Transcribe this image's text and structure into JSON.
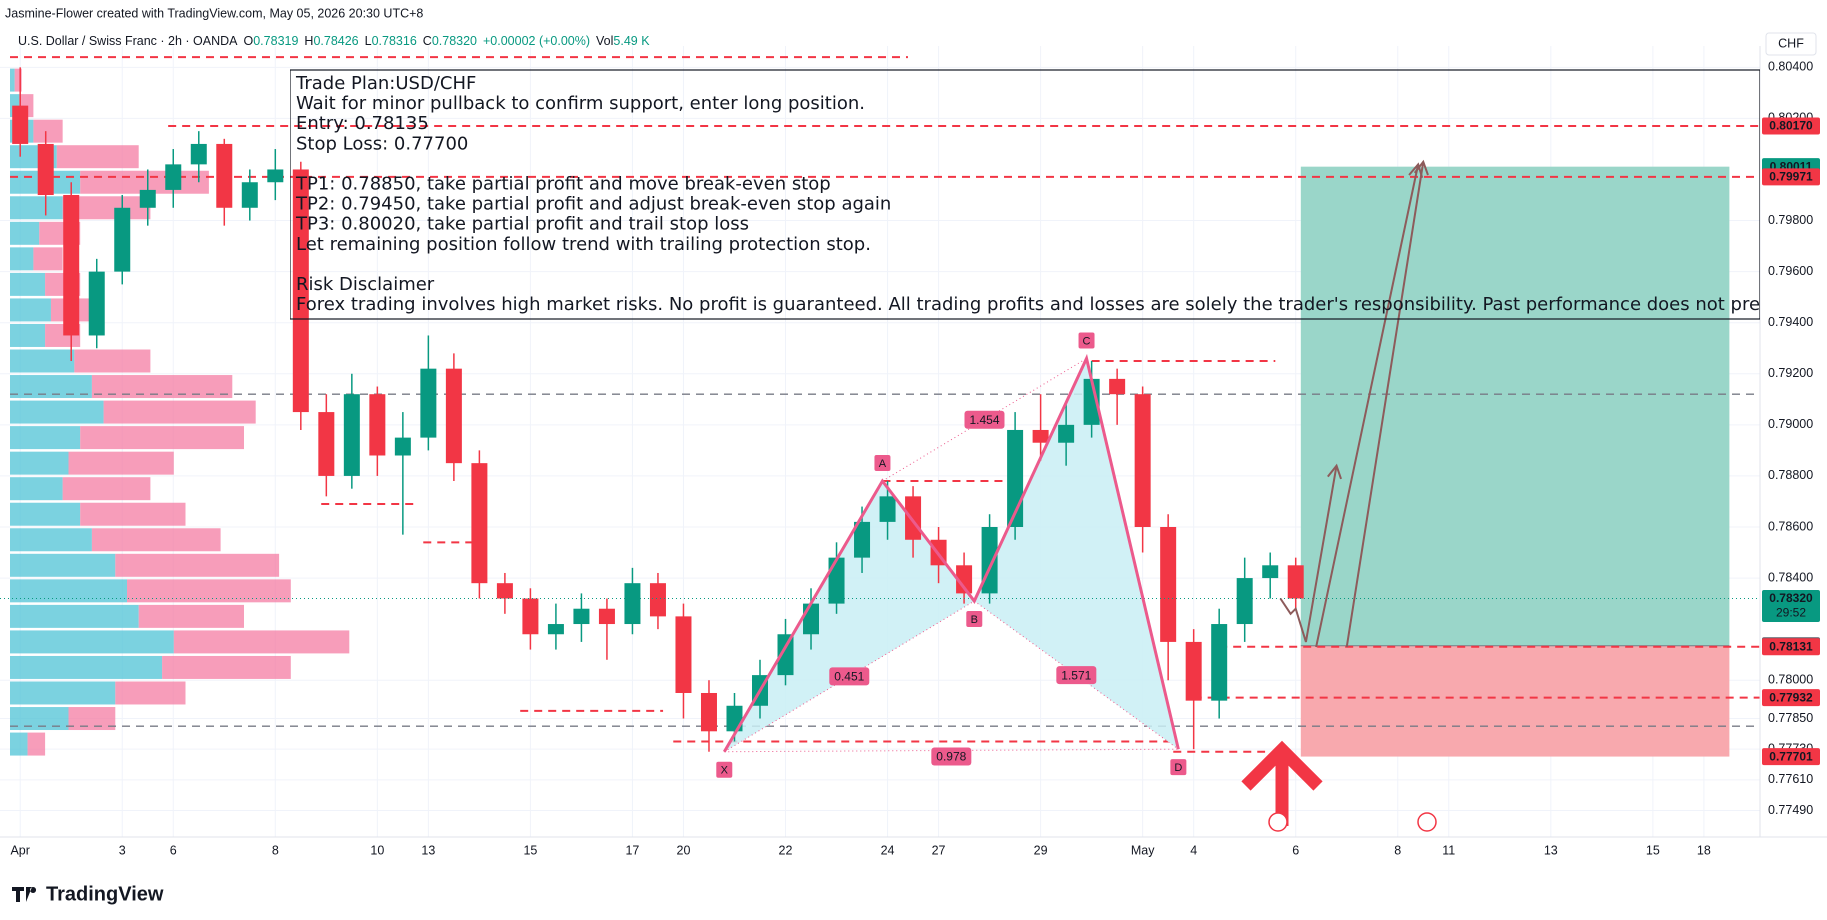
{
  "header": {
    "credit": "Jasmine-Flower created with TradingView.com, May 05, 2026 20:30 UTC+8",
    "symbol": "U.S. Dollar / Swiss Franc · 2h · OANDA",
    "ohlc": [
      {
        "key": "O",
        "value": "0.78319"
      },
      {
        "key": "H",
        "value": "0.78426"
      },
      {
        "key": "L",
        "value": "0.78316"
      },
      {
        "key": "C",
        "value": "0.78320"
      }
    ],
    "change": "+0.00002 (+0.00%)",
    "volume_key": "Vol",
    "volume": "5.49 K",
    "currency": "CHF"
  },
  "plan": {
    "paragraphs": [
      [
        "Trade Plan:USD/CHF",
        "Wait for minor pullback to confirm support, enter long position.",
        "Entry: 0.78135",
        "Stop Loss: 0.77700"
      ],
      [
        "TP1: 0.78850, take partial profit and move break-even stop",
        "TP2: 0.79450, take partial profit and adjust break-even stop again",
        "TP3: 0.80020, take partial profit and trail stop loss",
        "Let remaining position follow trend with trailing protection stop."
      ],
      [
        "Risk Disclaimer",
        "Forex trading involves high market risks. No profit is guaranteed. All trading profits and losses are solely the trader's responsibility. Past performance does not pre"
      ]
    ]
  },
  "footer": {
    "brand": "TradingView"
  },
  "chart_data": {
    "type": "candlestick",
    "x": [
      0,
      0.5,
      1,
      1.5,
      2,
      2.5,
      3,
      3.5,
      4,
      4.5,
      5,
      5.5,
      6,
      6.5,
      7,
      7.5,
      8,
      8.5,
      9,
      9.5,
      10,
      10.5,
      11,
      11.5,
      12,
      12.5,
      13,
      13.5,
      14,
      14.5,
      15,
      15.5,
      16,
      16.5,
      17,
      17.5,
      18,
      18.5,
      19,
      19.5,
      20,
      20.5,
      21,
      21.5,
      22,
      22.5,
      23,
      23.5,
      24,
      24.5,
      25
    ],
    "open": [
      0.8025,
      0.801,
      0.799,
      0.7935,
      0.796,
      0.7985,
      0.7992,
      0.8002,
      0.801,
      0.7985,
      0.7995,
      0.8,
      0.7905,
      0.788,
      0.7912,
      0.7888,
      0.7895,
      0.7922,
      0.7885,
      0.7838,
      0.7832,
      0.7818,
      0.7822,
      0.7828,
      0.7822,
      0.7838,
      0.7825,
      0.7795,
      0.778,
      0.779,
      0.7802,
      0.7818,
      0.783,
      0.7848,
      0.7862,
      0.7872,
      0.7855,
      0.7845,
      0.7834,
      0.786,
      0.7898,
      0.7893,
      0.79,
      0.7918,
      0.7912,
      0.786,
      0.7815,
      0.7792,
      0.7822,
      0.784,
      0.7845
    ],
    "high": [
      0.804,
      0.8015,
      0.7995,
      0.7965,
      0.799,
      0.8,
      0.8008,
      0.8015,
      0.8012,
      0.8,
      0.8008,
      0.8003,
      0.7912,
      0.792,
      0.7915,
      0.7905,
      0.7935,
      0.7928,
      0.789,
      0.7842,
      0.7836,
      0.783,
      0.7834,
      0.7832,
      0.7844,
      0.7842,
      0.783,
      0.78,
      0.7795,
      0.7808,
      0.7824,
      0.7836,
      0.7854,
      0.7868,
      0.7878,
      0.7876,
      0.786,
      0.785,
      0.7865,
      0.7905,
      0.7912,
      0.7908,
      0.7925,
      0.7922,
      0.7915,
      0.7865,
      0.782,
      0.7828,
      0.7848,
      0.785,
      0.7848
    ],
    "low": [
      0.8005,
      0.7982,
      0.7925,
      0.793,
      0.7955,
      0.7978,
      0.7985,
      0.7995,
      0.7978,
      0.798,
      0.7988,
      0.7898,
      0.7872,
      0.7875,
      0.788,
      0.7857,
      0.789,
      0.7878,
      0.7832,
      0.7826,
      0.7812,
      0.7812,
      0.7815,
      0.7808,
      0.7818,
      0.782,
      0.7785,
      0.7772,
      0.7776,
      0.7785,
      0.7798,
      0.7812,
      0.7826,
      0.7842,
      0.7855,
      0.7848,
      0.7838,
      0.783,
      0.783,
      0.7855,
      0.7886,
      0.7884,
      0.7895,
      0.79,
      0.785,
      0.78,
      0.7773,
      0.7785,
      0.7815,
      0.7832,
      0.7828
    ],
    "close": [
      0.801,
      0.799,
      0.7935,
      0.796,
      0.7985,
      0.7992,
      0.8002,
      0.801,
      0.7985,
      0.7995,
      0.8,
      0.7905,
      0.788,
      0.7912,
      0.7888,
      0.7895,
      0.7922,
      0.7885,
      0.7838,
      0.7832,
      0.7818,
      0.7822,
      0.7828,
      0.7822,
      0.7838,
      0.7825,
      0.7795,
      0.778,
      0.779,
      0.7802,
      0.7818,
      0.783,
      0.7848,
      0.7862,
      0.7872,
      0.7855,
      0.7845,
      0.7834,
      0.786,
      0.7898,
      0.7893,
      0.79,
      0.7918,
      0.7912,
      0.786,
      0.7815,
      0.7792,
      0.7822,
      0.784,
      0.7845,
      0.7832
    ],
    "up_color": "#089981",
    "down_color": "#f23645",
    "xlim": [
      -0.2,
      34.1
    ],
    "ylim": [
      0.7739,
      0.8046
    ],
    "xticks": [
      {
        "value": 0,
        "label": "Apr"
      },
      {
        "value": 2,
        "label": "3"
      },
      {
        "value": 3,
        "label": "6"
      },
      {
        "value": 5,
        "label": "8"
      },
      {
        "value": 7,
        "label": "10"
      },
      {
        "value": 8,
        "label": "13"
      },
      {
        "value": 10,
        "label": "15"
      },
      {
        "value": 12,
        "label": "17"
      },
      {
        "value": 13,
        "label": "20"
      },
      {
        "value": 15,
        "label": "22"
      },
      {
        "value": 17,
        "label": "24"
      },
      {
        "value": 18,
        "label": "27"
      },
      {
        "value": 20,
        "label": "29"
      },
      {
        "value": 22,
        "label": "May"
      },
      {
        "value": 23,
        "label": "4"
      },
      {
        "value": 25,
        "label": "6"
      },
      {
        "value": 27,
        "label": "8"
      },
      {
        "value": 28,
        "label": "11"
      },
      {
        "value": 30,
        "label": "13"
      },
      {
        "value": 32,
        "label": "15"
      },
      {
        "value": 33,
        "label": "18"
      }
    ],
    "yticks": [
      {
        "value": 0.804,
        "label": "0.80400"
      },
      {
        "value": 0.802,
        "label": "0.80200"
      },
      {
        "value": 0.798,
        "label": "0.79800"
      },
      {
        "value": 0.796,
        "label": "0.79600"
      },
      {
        "value": 0.794,
        "label": "0.79400"
      },
      {
        "value": 0.792,
        "label": "0.79200"
      },
      {
        "value": 0.79,
        "label": "0.79000"
      },
      {
        "value": 0.788,
        "label": "0.78800"
      },
      {
        "value": 0.786,
        "label": "0.78600"
      },
      {
        "value": 0.784,
        "label": "0.78400"
      },
      {
        "value": 0.78,
        "label": "0.78000"
      },
      {
        "value": 0.7785,
        "label": "0.77850"
      },
      {
        "value": 0.7773,
        "label": "0.77730"
      },
      {
        "value": 0.7761,
        "label": "0.77610"
      },
      {
        "value": 0.7749,
        "label": "0.77490"
      }
    ],
    "grid": true,
    "last_price": 0.7832,
    "price_labels": [
      {
        "value": 0.8017,
        "label": "0.80170",
        "color": "#f23645"
      },
      {
        "value": 0.80011,
        "label": "0.80011",
        "color": "#089981"
      },
      {
        "value": 0.79971,
        "label": "0.79971",
        "color": "#f23645"
      },
      {
        "value": 0.7832,
        "label": "0.78320",
        "color": "#089981",
        "extra": "29:52"
      },
      {
        "value": 0.78135,
        "label": "0.78135",
        "color": "#5d606b"
      },
      {
        "value": 0.78131,
        "label": "0.78131",
        "color": "#f23645"
      },
      {
        "value": 0.77932,
        "label": "0.77932",
        "color": "#f23645"
      },
      {
        "value": 0.77701,
        "label": "0.77701",
        "color": "#f23645"
      }
    ],
    "levels": [
      {
        "price": 0.8044,
        "from": -0.2,
        "to": 17.4,
        "color": "#f23645"
      },
      {
        "price": 0.8017,
        "from": 2.9,
        "to": 34.1,
        "color": "#f23645"
      },
      {
        "price": 0.79971,
        "from": -0.2,
        "to": 34.1,
        "color": "#f23645"
      },
      {
        "price": 0.7912,
        "from": -0.2,
        "to": 34.1,
        "color": "#787b86"
      },
      {
        "price": 0.7782,
        "from": -0.2,
        "to": 34.1,
        "color": "#787b86"
      },
      {
        "price": 0.7869,
        "from": 5.9,
        "to": 7.8,
        "color": "#f23645"
      },
      {
        "price": 0.7854,
        "from": 7.9,
        "to": 8.9,
        "color": "#f23645"
      },
      {
        "price": 0.7788,
        "from": 9.8,
        "to": 12.6,
        "color": "#f23645"
      },
      {
        "price": 0.7776,
        "from": 12.8,
        "to": 22.5,
        "color": "#f23645"
      },
      {
        "price": 0.7878,
        "from": 16.9,
        "to": 19.3,
        "color": "#f23645"
      },
      {
        "price": 0.7925,
        "from": 21.0,
        "to": 24.6,
        "color": "#f23645"
      },
      {
        "price": 0.78131,
        "from": 23.5,
        "to": 34.1,
        "color": "#f23645"
      },
      {
        "price": 0.77932,
        "from": 23.0,
        "to": 34.1,
        "color": "#f23645"
      },
      {
        "price": 0.7772,
        "from": 22.6,
        "to": 24.4,
        "color": "#f23645"
      }
    ],
    "pattern": {
      "color": "#ec5a8c",
      "fill": "#c9eef5",
      "points": [
        {
          "label": "X",
          "x": 13.8,
          "price": 0.7772
        },
        {
          "label": "A",
          "x": 16.9,
          "price": 0.7878
        },
        {
          "label": "B",
          "x": 18.7,
          "price": 0.7831
        },
        {
          "label": "C",
          "x": 20.9,
          "price": 0.7926
        },
        {
          "label": "D",
          "x": 22.7,
          "price": 0.7773
        }
      ],
      "ratios": [
        0.451,
        1.454,
        1.571,
        0.978
      ]
    },
    "position": {
      "from": 25.1,
      "to": 33.5,
      "entry": 0.78135,
      "stop": 0.77701,
      "target": 0.80011,
      "profit_color": "#9ad6c9",
      "loss_color": "#f8a9ae"
    },
    "projection": {
      "color": "#8d5b5b",
      "x": [
        24.7,
        24.9,
        25.0,
        25.2,
        25.8
      ],
      "y": [
        0.7832,
        0.7826,
        0.7828,
        0.7815,
        0.7884
      ],
      "arrows": [
        {
          "x": [
            25.4,
            27.4
          ],
          "y": [
            0.7813,
            0.8002
          ]
        },
        {
          "x": [
            26.0,
            27.5
          ],
          "y": [
            0.7813,
            0.8003
          ]
        }
      ]
    },
    "volume_profile": {
      "buy_color": "#4fc3d6",
      "sell_color": "#f47ca3",
      "prices": [
        0.8035,
        0.8025,
        0.8015,
        0.8005,
        0.7995,
        0.7985,
        0.7975,
        0.7965,
        0.7955,
        0.7945,
        0.7935,
        0.7925,
        0.7915,
        0.7905,
        0.7895,
        0.7885,
        0.7875,
        0.7865,
        0.7855,
        0.7845,
        0.7835,
        0.7825,
        0.7815,
        0.7805,
        0.7795,
        0.7785,
        0.7775
      ],
      "buy": [
        4,
        8,
        20,
        40,
        60,
        45,
        25,
        20,
        30,
        35,
        30,
        55,
        70,
        80,
        60,
        50,
        45,
        60,
        70,
        90,
        100,
        110,
        140,
        130,
        90,
        50,
        15
      ],
      "sell": [
        6,
        12,
        25,
        70,
        110,
        75,
        35,
        25,
        30,
        35,
        30,
        65,
        120,
        130,
        140,
        90,
        75,
        90,
        110,
        140,
        140,
        90,
        150,
        110,
        60,
        40,
        15
      ]
    }
  }
}
